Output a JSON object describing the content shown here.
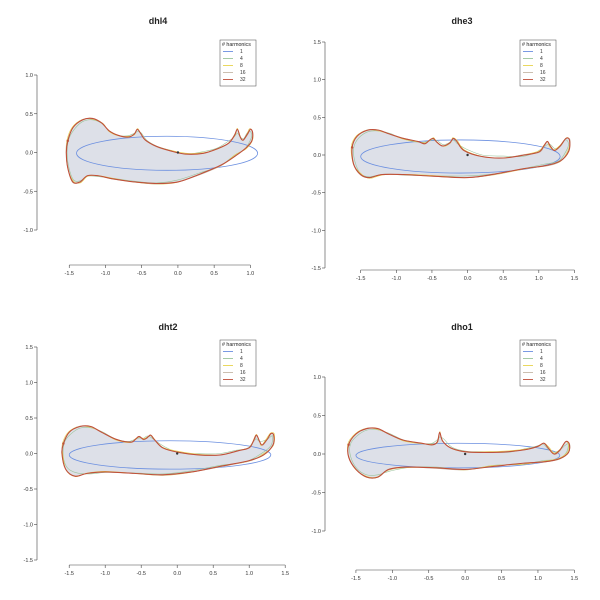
{
  "chart_data": [
    {
      "type": "line",
      "title": "dhl4",
      "xlim": [
        -1.6,
        1.05
      ],
      "ylim": [
        -1.0,
        1.0
      ],
      "xticks": [
        "-1.5",
        "-1.0",
        "-0.5",
        "0.0",
        "0.5",
        "1.0"
      ],
      "yticks": [
        "-1.0",
        "-0.5",
        "0.0",
        "0.5",
        "1.0"
      ],
      "legend": {
        "title": "# harmonics",
        "position": "top-right",
        "entries": [
          "1",
          "4",
          "8",
          "16",
          "32"
        ]
      },
      "colors": {
        "1": "#6b8fe0",
        "4": "#9bc49b",
        "8": "#e8d44d",
        "16": "#c6b8a8",
        "32": "#c0503a"
      },
      "center": [
        0.0,
        0.0
      ],
      "outline": [
        [
          -1.52,
          0.15
        ],
        [
          -1.45,
          0.32
        ],
        [
          -1.32,
          0.42
        ],
        [
          -1.18,
          0.44
        ],
        [
          -1.05,
          0.38
        ],
        [
          -0.95,
          0.28
        ],
        [
          -0.82,
          0.22
        ],
        [
          -0.68,
          0.2
        ],
        [
          -0.6,
          0.24
        ],
        [
          -0.56,
          0.3
        ],
        [
          -0.51,
          0.24
        ],
        [
          -0.45,
          0.16
        ],
        [
          -0.3,
          0.08
        ],
        [
          -0.1,
          0.02
        ],
        [
          0.1,
          -0.02
        ],
        [
          0.35,
          -0.01
        ],
        [
          0.55,
          0.05
        ],
        [
          0.7,
          0.12
        ],
        [
          0.78,
          0.22
        ],
        [
          0.82,
          0.3
        ],
        [
          0.86,
          0.2
        ],
        [
          0.9,
          0.16
        ],
        [
          0.96,
          0.24
        ],
        [
          1.0,
          0.3
        ],
        [
          1.03,
          0.26
        ],
        [
          1.02,
          0.15
        ],
        [
          0.94,
          0.06
        ],
        [
          0.8,
          -0.04
        ],
        [
          0.6,
          -0.16
        ],
        [
          0.3,
          -0.28
        ],
        [
          0.0,
          -0.38
        ],
        [
          -0.3,
          -0.4
        ],
        [
          -0.6,
          -0.38
        ],
        [
          -0.9,
          -0.34
        ],
        [
          -1.1,
          -0.3
        ],
        [
          -1.25,
          -0.3
        ],
        [
          -1.35,
          -0.38
        ],
        [
          -1.45,
          -0.38
        ],
        [
          -1.52,
          -0.2
        ],
        [
          -1.54,
          0.0
        ]
      ],
      "ellipse": {
        "cx": -0.15,
        "cy": -0.01,
        "rx": 1.25,
        "ry": 0.22
      }
    },
    {
      "type": "line",
      "title": "dhe3",
      "xlim": [
        -1.65,
        1.55
      ],
      "ylim": [
        -1.5,
        1.5
      ],
      "xticks": [
        "-1.5",
        "-1.0",
        "-0.5",
        "0.0",
        "0.5",
        "1.0",
        "1.5"
      ],
      "yticks": [
        "-1.5",
        "-1.0",
        "-0.5",
        "0.0",
        "0.5",
        "1.0",
        "1.5"
      ],
      "legend": {
        "title": "# harmonics",
        "position": "top-right",
        "entries": [
          "1",
          "4",
          "8",
          "16",
          "32"
        ]
      },
      "colors": {
        "1": "#6b8fe0",
        "4": "#9bc49b",
        "8": "#e8d44d",
        "16": "#c6b8a8",
        "32": "#c0503a"
      },
      "center": [
        0.0,
        0.0
      ],
      "outline": [
        [
          -1.62,
          0.1
        ],
        [
          -1.55,
          0.25
        ],
        [
          -1.4,
          0.33
        ],
        [
          -1.25,
          0.33
        ],
        [
          -1.1,
          0.28
        ],
        [
          -0.9,
          0.22
        ],
        [
          -0.7,
          0.18
        ],
        [
          -0.6,
          0.15
        ],
        [
          -0.53,
          0.2
        ],
        [
          -0.48,
          0.22
        ],
        [
          -0.43,
          0.17
        ],
        [
          -0.35,
          0.12
        ],
        [
          -0.25,
          0.16
        ],
        [
          -0.2,
          0.22
        ],
        [
          -0.15,
          0.18
        ],
        [
          -0.05,
          0.06
        ],
        [
          0.2,
          -0.02
        ],
        [
          0.5,
          -0.04
        ],
        [
          0.8,
          0.0
        ],
        [
          1.0,
          0.04
        ],
        [
          1.07,
          0.12
        ],
        [
          1.12,
          0.18
        ],
        [
          1.16,
          0.12
        ],
        [
          1.22,
          0.06
        ],
        [
          1.3,
          0.12
        ],
        [
          1.38,
          0.22
        ],
        [
          1.43,
          0.2
        ],
        [
          1.42,
          0.05
        ],
        [
          1.3,
          -0.08
        ],
        [
          1.1,
          -0.14
        ],
        [
          0.8,
          -0.18
        ],
        [
          0.4,
          -0.25
        ],
        [
          0.0,
          -0.3
        ],
        [
          -0.5,
          -0.28
        ],
        [
          -0.9,
          -0.26
        ],
        [
          -1.2,
          -0.26
        ],
        [
          -1.38,
          -0.3
        ],
        [
          -1.5,
          -0.26
        ],
        [
          -1.6,
          -0.12
        ]
      ],
      "ellipse": {
        "cx": -0.1,
        "cy": -0.02,
        "rx": 1.4,
        "ry": 0.22
      }
    },
    {
      "type": "line",
      "title": "dht2",
      "xlim": [
        -1.6,
        1.4
      ],
      "ylim": [
        -1.5,
        1.5
      ],
      "xticks": [
        "-1.5",
        "-1.0",
        "-0.5",
        "0.0",
        "0.5",
        "1.0",
        "1.5"
      ],
      "yticks": [
        "-1.5",
        "-1.0",
        "-0.5",
        "0.0",
        "0.5",
        "1.0",
        "1.5"
      ],
      "legend": {
        "title": "# harmonics",
        "position": "top-right",
        "entries": [
          "1",
          "4",
          "8",
          "16",
          "32"
        ]
      },
      "colors": {
        "1": "#6b8fe0",
        "4": "#9bc49b",
        "8": "#e8d44d",
        "16": "#c6b8a8",
        "32": "#c0503a"
      },
      "center": [
        0.0,
        0.0
      ],
      "outline": [
        [
          -1.58,
          0.14
        ],
        [
          -1.5,
          0.3
        ],
        [
          -1.35,
          0.38
        ],
        [
          -1.2,
          0.38
        ],
        [
          -1.05,
          0.3
        ],
        [
          -0.85,
          0.2
        ],
        [
          -0.65,
          0.16
        ],
        [
          -0.58,
          0.2
        ],
        [
          -0.53,
          0.24
        ],
        [
          -0.47,
          0.2
        ],
        [
          -0.42,
          0.22
        ],
        [
          -0.37,
          0.26
        ],
        [
          -0.32,
          0.2
        ],
        [
          -0.2,
          0.08
        ],
        [
          0.0,
          0.02
        ],
        [
          0.3,
          -0.02
        ],
        [
          0.6,
          -0.02
        ],
        [
          0.85,
          0.04
        ],
        [
          1.0,
          0.08
        ],
        [
          1.06,
          0.18
        ],
        [
          1.1,
          0.26
        ],
        [
          1.14,
          0.18
        ],
        [
          1.18,
          0.12
        ],
        [
          1.25,
          0.2
        ],
        [
          1.3,
          0.28
        ],
        [
          1.34,
          0.26
        ],
        [
          1.33,
          0.12
        ],
        [
          1.2,
          -0.02
        ],
        [
          1.0,
          -0.1
        ],
        [
          0.6,
          -0.18
        ],
        [
          0.2,
          -0.26
        ],
        [
          -0.2,
          -0.3
        ],
        [
          -0.6,
          -0.28
        ],
        [
          -1.0,
          -0.26
        ],
        [
          -1.25,
          -0.28
        ],
        [
          -1.42,
          -0.32
        ],
        [
          -1.55,
          -0.22
        ],
        [
          -1.6,
          0.0
        ]
      ],
      "ellipse": {
        "cx": -0.1,
        "cy": -0.02,
        "rx": 1.4,
        "ry": 0.2
      }
    },
    {
      "type": "line",
      "title": "dho1",
      "xlim": [
        -1.65,
        1.55
      ],
      "ylim": [
        -1.0,
        1.0
      ],
      "xticks": [
        "-1.5",
        "-1.0",
        "-0.5",
        "0.0",
        "0.5",
        "1.0",
        "1.5"
      ],
      "yticks": [
        "-1.0",
        "-0.5",
        "0.0",
        "0.5",
        "1.0"
      ],
      "legend": {
        "title": "# harmonics",
        "position": "top-right",
        "entries": [
          "1",
          "4",
          "8",
          "16",
          "32"
        ]
      },
      "colors": {
        "1": "#6b8fe0",
        "4": "#9bc49b",
        "8": "#e8d44d",
        "16": "#c6b8a8",
        "32": "#c0503a"
      },
      "center": [
        0.0,
        0.0
      ],
      "outline": [
        [
          -1.6,
          0.12
        ],
        [
          -1.5,
          0.26
        ],
        [
          -1.35,
          0.33
        ],
        [
          -1.2,
          0.33
        ],
        [
          -1.05,
          0.26
        ],
        [
          -0.85,
          0.18
        ],
        [
          -0.6,
          0.14
        ],
        [
          -0.45,
          0.12
        ],
        [
          -0.38,
          0.16
        ],
        [
          -0.35,
          0.28
        ],
        [
          -0.31,
          0.17
        ],
        [
          -0.2,
          0.08
        ],
        [
          0.0,
          0.03
        ],
        [
          0.3,
          0.02
        ],
        [
          0.6,
          0.03
        ],
        [
          0.85,
          0.06
        ],
        [
          1.0,
          0.1
        ],
        [
          1.08,
          0.14
        ],
        [
          1.14,
          0.08
        ],
        [
          1.22,
          0.0
        ],
        [
          1.3,
          0.05
        ],
        [
          1.38,
          0.16
        ],
        [
          1.43,
          0.13
        ],
        [
          1.42,
          0.02
        ],
        [
          1.3,
          -0.06
        ],
        [
          1.1,
          -0.1
        ],
        [
          0.8,
          -0.12
        ],
        [
          0.4,
          -0.16
        ],
        [
          0.0,
          -0.2
        ],
        [
          -0.4,
          -0.18
        ],
        [
          -0.8,
          -0.17
        ],
        [
          -1.05,
          -0.2
        ],
        [
          -1.2,
          -0.3
        ],
        [
          -1.35,
          -0.3
        ],
        [
          -1.5,
          -0.2
        ],
        [
          -1.6,
          -0.04
        ]
      ],
      "ellipse": {
        "cx": -0.1,
        "cy": -0.02,
        "rx": 1.4,
        "ry": 0.16
      }
    }
  ]
}
